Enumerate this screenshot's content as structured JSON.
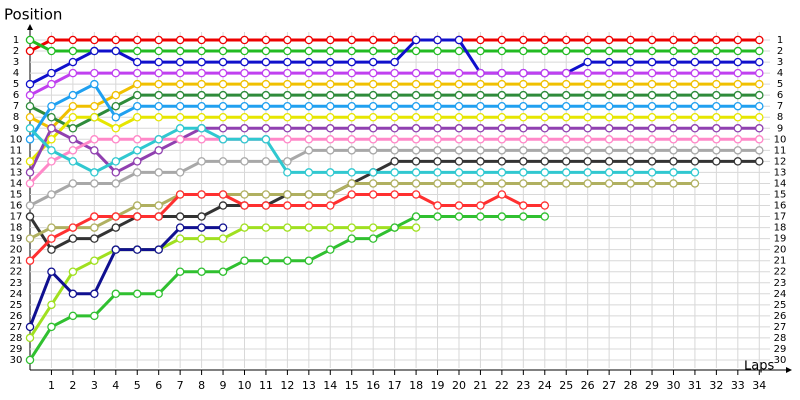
{
  "chart_data": {
    "type": "line",
    "title": "Position",
    "x_label": "Laps",
    "x": [
      0,
      1,
      2,
      3,
      4,
      5,
      6,
      7,
      8,
      9,
      10,
      11,
      12,
      13,
      14,
      15,
      16,
      17,
      18,
      19,
      20,
      21,
      22,
      23,
      24,
      25,
      26,
      27,
      28,
      29,
      30,
      31,
      32,
      33,
      34
    ],
    "xlim": [
      0,
      34.5
    ],
    "xticks": [
      1,
      2,
      3,
      4,
      5,
      6,
      7,
      8,
      9,
      10,
      11,
      12,
      13,
      14,
      15,
      16,
      17,
      18,
      19,
      20,
      21,
      22,
      23,
      24,
      25,
      26,
      27,
      28,
      29,
      30,
      31,
      32,
      33,
      34
    ],
    "ylim": [
      30,
      1
    ],
    "yticks": [
      1,
      2,
      3,
      4,
      5,
      6,
      7,
      8,
      9,
      10,
      11,
      12,
      13,
      14,
      15,
      16,
      17,
      18,
      19,
      20,
      21,
      22,
      23,
      24,
      25,
      26,
      27,
      28,
      29,
      30
    ],
    "grid": true,
    "series": [
      {
        "color": "#ee0000",
        "values": [
          2,
          1,
          1,
          1,
          1,
          1,
          1,
          1,
          1,
          1,
          1,
          1,
          1,
          1,
          1,
          1,
          1,
          1,
          1,
          1,
          1,
          1,
          1,
          1,
          1,
          1,
          1,
          1,
          1,
          1,
          1,
          1,
          1,
          1,
          1
        ]
      },
      {
        "color": "#22bb22",
        "values": [
          1,
          2,
          2,
          2,
          2,
          2,
          2,
          2,
          2,
          2,
          2,
          2,
          2,
          2,
          2,
          2,
          2,
          2,
          2,
          2,
          2,
          2,
          2,
          2,
          2,
          2,
          2,
          2,
          2,
          2,
          2,
          2,
          2,
          2,
          2
        ]
      },
      {
        "color": "#1010cc",
        "values": [
          5,
          4,
          3,
          2,
          2,
          3,
          3,
          3,
          3,
          3,
          3,
          3,
          3,
          3,
          3,
          3,
          3,
          3,
          1,
          1,
          1,
          4,
          4,
          4,
          4,
          4,
          3,
          3,
          3,
          3,
          3,
          3,
          3,
          3,
          3
        ]
      },
      {
        "color": "#c040f0",
        "values": [
          6,
          5,
          4,
          4,
          4,
          4,
          4,
          4,
          4,
          4,
          4,
          4,
          4,
          4,
          4,
          4,
          4,
          4,
          4,
          4,
          4,
          4,
          4,
          4,
          4,
          4,
          4,
          4,
          4,
          4,
          4,
          4,
          4,
          4,
          4
        ]
      },
      {
        "color": "#f0c000",
        "values": [
          8,
          9,
          7,
          7,
          6,
          5,
          5,
          5,
          5,
          5,
          5,
          5,
          5,
          5,
          5,
          5,
          5,
          5,
          5,
          5,
          5,
          5,
          5,
          5,
          5,
          5,
          5,
          5,
          5,
          5,
          5,
          5,
          5,
          5,
          5
        ]
      },
      {
        "color": "#2e8b3a",
        "values": [
          7,
          8,
          9,
          8,
          7,
          6,
          6,
          6,
          6,
          6,
          6,
          6,
          6,
          6,
          6,
          6,
          6,
          6,
          6,
          6,
          6,
          6,
          6,
          6,
          6,
          6,
          6,
          6,
          6,
          6,
          6,
          6,
          6,
          6,
          6
        ]
      },
      {
        "color": "#20a0f0",
        "values": [
          10,
          7,
          6,
          5,
          8,
          7,
          7,
          7,
          7,
          7,
          7,
          7,
          7,
          7,
          7,
          7,
          7,
          7,
          7,
          7,
          7,
          7,
          7,
          7,
          7,
          7,
          7,
          7,
          7,
          7,
          7,
          7,
          7,
          7,
          7
        ]
      },
      {
        "color": "#e6e600",
        "values": [
          12,
          10,
          8,
          8,
          9,
          8,
          8,
          8,
          8,
          8,
          8,
          8,
          8,
          8,
          8,
          8,
          8,
          8,
          8,
          8,
          8,
          8,
          8,
          8,
          8,
          8,
          8,
          8,
          8,
          8,
          8,
          8,
          8,
          8,
          8
        ]
      },
      {
        "color": "#9040b0",
        "values": [
          13,
          9,
          10,
          11,
          13,
          12,
          11,
          10,
          9,
          9,
          9,
          9,
          9,
          9,
          9,
          9,
          9,
          9,
          9,
          9,
          9,
          9,
          9,
          9,
          9,
          9,
          9,
          9,
          9,
          9,
          9,
          9,
          9,
          9,
          9
        ]
      },
      {
        "color": "#ff88c8",
        "values": [
          14,
          12,
          11,
          10,
          10,
          10,
          10,
          10,
          10,
          10,
          10,
          10,
          10,
          10,
          10,
          10,
          10,
          10,
          10,
          10,
          10,
          10,
          10,
          10,
          10,
          10,
          10,
          10,
          10,
          10,
          10,
          10,
          10,
          10,
          10
        ]
      },
      {
        "color": "#a8a8a8",
        "values": [
          16,
          15,
          14,
          14,
          14,
          13,
          13,
          13,
          12,
          12,
          12,
          12,
          12,
          11,
          11,
          11,
          11,
          11,
          11,
          11,
          11,
          11,
          11,
          11,
          11,
          11,
          11,
          11,
          11,
          11,
          11,
          11,
          11,
          11,
          11
        ]
      },
      {
        "color": "#333333",
        "values": [
          17,
          20,
          19,
          19,
          18,
          17,
          17,
          17,
          17,
          16,
          16,
          16,
          15,
          15,
          15,
          14,
          13,
          12,
          12,
          12,
          12,
          12,
          12,
          12,
          12,
          12,
          12,
          12,
          12,
          12,
          12,
          12,
          12,
          12,
          12
        ]
      },
      {
        "color": "#30c8d0",
        "values": [
          9,
          11,
          12,
          13,
          12,
          11,
          10,
          9,
          9,
          10,
          10,
          10,
          13,
          13,
          13,
          13,
          13,
          13,
          13,
          13,
          13,
          13,
          13,
          13,
          13,
          13,
          13,
          13,
          13,
          13,
          13,
          13,
          null,
          null,
          null
        ]
      },
      {
        "color": "#b0b060",
        "values": [
          19,
          18,
          18,
          18,
          17,
          16,
          16,
          15,
          15,
          15,
          15,
          15,
          15,
          15,
          15,
          14,
          14,
          14,
          14,
          14,
          14,
          14,
          14,
          14,
          14,
          14,
          14,
          14,
          14,
          14,
          14,
          14,
          null,
          null,
          null
        ]
      },
      {
        "color": "#ff3030",
        "values": [
          21,
          19,
          18,
          17,
          17,
          17,
          17,
          15,
          15,
          15,
          16,
          16,
          16,
          16,
          16,
          15,
          15,
          15,
          15,
          16,
          16,
          16,
          15,
          16,
          16,
          null,
          null,
          null,
          null,
          null,
          null,
          null,
          null,
          null,
          null
        ]
      },
      {
        "color": "#a0e020",
        "values": [
          28,
          25,
          22,
          21,
          20,
          20,
          20,
          19,
          19,
          19,
          18,
          18,
          18,
          18,
          18,
          18,
          18,
          18,
          18,
          null,
          null,
          null,
          null,
          null,
          null,
          null,
          null,
          null,
          null,
          null,
          null,
          null,
          null,
          null,
          null
        ]
      },
      {
        "color": "#30c030",
        "values": [
          30,
          27,
          26,
          26,
          24,
          24,
          24,
          22,
          22,
          22,
          21,
          21,
          21,
          21,
          20,
          19,
          19,
          18,
          17,
          17,
          17,
          17,
          17,
          17,
          17,
          null,
          null,
          null,
          null,
          null,
          null,
          null,
          null,
          null,
          null
        ]
      },
      {
        "color": "#101090",
        "values": [
          27,
          22,
          24,
          24,
          20,
          20,
          20,
          18,
          18,
          18,
          null,
          null,
          null,
          null,
          null,
          null,
          null,
          null,
          null,
          null,
          null,
          null,
          null,
          null,
          null,
          null,
          null,
          null,
          null,
          null,
          null,
          null,
          null,
          null,
          null
        ]
      }
    ]
  }
}
